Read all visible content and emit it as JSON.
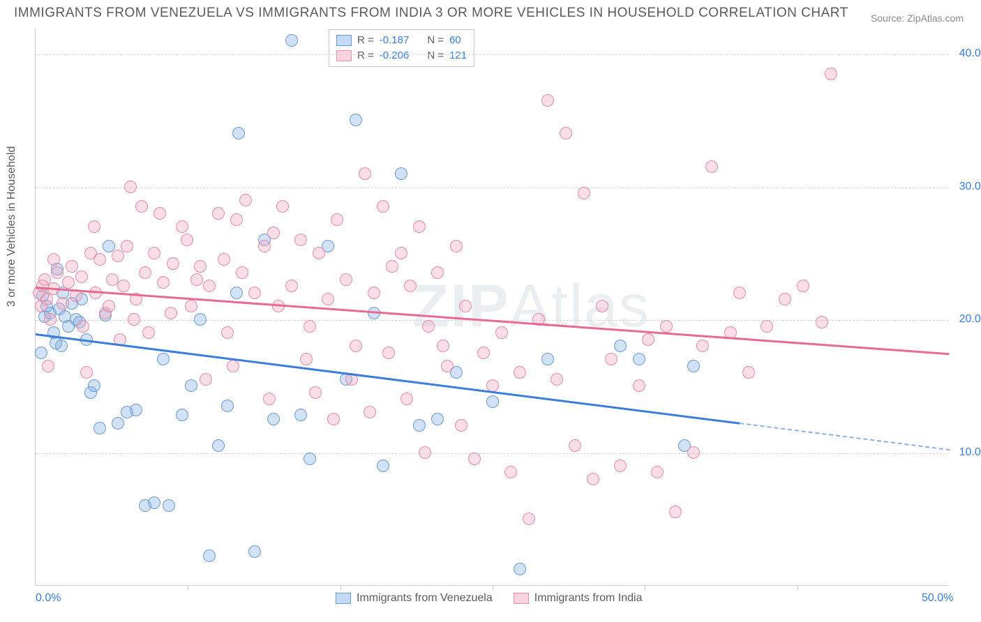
{
  "title": "IMMIGRANTS FROM VENEZUELA VS IMMIGRANTS FROM INDIA 3 OR MORE VEHICLES IN HOUSEHOLD CORRELATION CHART",
  "source": "Source: ZipAtlas.com",
  "y_axis_label": "3 or more Vehicles in Household",
  "watermark_bold": "ZIP",
  "watermark_rest": "Atlas",
  "chart": {
    "type": "scatter",
    "xlim": [
      0,
      50
    ],
    "ylim": [
      0,
      42
    ],
    "x_ticks": [
      0,
      50
    ],
    "x_tick_labels": [
      "0.0%",
      "50.0%"
    ],
    "x_minor_ticks": [
      8.33,
      16.67,
      25,
      33.33,
      41.67
    ],
    "y_gridlines": [
      10,
      20,
      30,
      40
    ],
    "y_tick_labels": [
      "10.0%",
      "20.0%",
      "30.0%",
      "40.0%"
    ],
    "background_color": "#ffffff",
    "grid_color": "#d8d8d8",
    "axis_color": "#cccccc",
    "point_radius": 9,
    "series": [
      {
        "name": "Immigrants from Venezuela",
        "color_fill": "rgba(122,171,230,0.35)",
        "color_stroke": "#6a9ad0",
        "trend_color": "#3b7dd8",
        "R": "-0.187",
        "N": "60",
        "trend": {
          "x1": 0,
          "y1": 19.0,
          "x2": 38.5,
          "y2": 12.3,
          "dash_to_x": 50,
          "dash_to_y": 10.3
        },
        "points": [
          [
            0.4,
            21.8
          ],
          [
            0.5,
            20.2
          ],
          [
            0.6,
            21.0
          ],
          [
            0.8,
            20.5
          ],
          [
            1.0,
            19.0
          ],
          [
            1.2,
            23.8
          ],
          [
            1.3,
            20.8
          ],
          [
            1.4,
            18.0
          ],
          [
            1.5,
            22.0
          ],
          [
            1.6,
            20.2
          ],
          [
            1.8,
            19.5
          ],
          [
            2.0,
            21.2
          ],
          [
            2.2,
            20.0
          ],
          [
            2.5,
            21.5
          ],
          [
            2.8,
            18.5
          ],
          [
            3.0,
            14.5
          ],
          [
            3.2,
            15.0
          ],
          [
            3.5,
            11.8
          ],
          [
            3.8,
            20.3
          ],
          [
            4.0,
            25.5
          ],
          [
            4.5,
            12.2
          ],
          [
            5.0,
            13.0
          ],
          [
            5.5,
            13.2
          ],
          [
            6.0,
            6.0
          ],
          [
            6.5,
            6.2
          ],
          [
            7.0,
            17.0
          ],
          [
            7.3,
            6.0
          ],
          [
            8.0,
            12.8
          ],
          [
            8.5,
            15.0
          ],
          [
            9.0,
            20.0
          ],
          [
            9.5,
            2.2
          ],
          [
            10.0,
            10.5
          ],
          [
            10.5,
            13.5
          ],
          [
            11.0,
            22.0
          ],
          [
            11.1,
            34.0
          ],
          [
            12.0,
            2.5
          ],
          [
            12.5,
            26.0
          ],
          [
            13.0,
            12.5
          ],
          [
            14.0,
            41.0
          ],
          [
            14.5,
            12.8
          ],
          [
            15.0,
            9.5
          ],
          [
            16.0,
            25.5
          ],
          [
            17.0,
            15.5
          ],
          [
            17.5,
            35.0
          ],
          [
            18.5,
            20.5
          ],
          [
            19.0,
            9.0
          ],
          [
            20.0,
            31.0
          ],
          [
            21.0,
            12.0
          ],
          [
            22.0,
            12.5
          ],
          [
            23.0,
            16.0
          ],
          [
            25.0,
            13.8
          ],
          [
            26.5,
            1.2
          ],
          [
            28.0,
            17.0
          ],
          [
            32.0,
            18.0
          ],
          [
            33.0,
            17.0
          ],
          [
            35.5,
            10.5
          ],
          [
            36.0,
            16.5
          ],
          [
            0.3,
            17.5
          ],
          [
            1.1,
            18.2
          ],
          [
            2.4,
            19.8
          ]
        ]
      },
      {
        "name": "Immigrants from India",
        "color_fill": "rgba(242,160,185,0.35)",
        "color_stroke": "#e28ca8",
        "trend_color": "#e86a93",
        "R": "-0.206",
        "N": "121",
        "trend": {
          "x1": 0,
          "y1": 22.5,
          "x2": 50,
          "y2": 17.5
        },
        "points": [
          [
            0.2,
            22.0
          ],
          [
            0.3,
            21.0
          ],
          [
            0.4,
            22.5
          ],
          [
            0.5,
            23.0
          ],
          [
            0.6,
            21.5
          ],
          [
            0.7,
            16.5
          ],
          [
            0.8,
            20.0
          ],
          [
            1.0,
            22.3
          ],
          [
            1.2,
            23.5
          ],
          [
            1.5,
            21.2
          ],
          [
            1.8,
            22.8
          ],
          [
            2.0,
            24.0
          ],
          [
            2.2,
            21.8
          ],
          [
            2.5,
            23.2
          ],
          [
            2.8,
            16.0
          ],
          [
            3.0,
            25.0
          ],
          [
            3.3,
            22.0
          ],
          [
            3.5,
            24.5
          ],
          [
            3.8,
            20.5
          ],
          [
            4.0,
            21.0
          ],
          [
            4.2,
            23.0
          ],
          [
            4.5,
            24.8
          ],
          [
            4.8,
            22.5
          ],
          [
            5.0,
            25.5
          ],
          [
            5.2,
            30.0
          ],
          [
            5.5,
            21.5
          ],
          [
            5.8,
            28.5
          ],
          [
            6.0,
            23.5
          ],
          [
            6.5,
            25.0
          ],
          [
            7.0,
            22.8
          ],
          [
            7.5,
            24.2
          ],
          [
            8.0,
            27.0
          ],
          [
            8.3,
            26.0
          ],
          [
            8.5,
            21.0
          ],
          [
            9.0,
            24.0
          ],
          [
            9.5,
            22.5
          ],
          [
            10.0,
            28.0
          ],
          [
            10.3,
            24.5
          ],
          [
            10.5,
            19.0
          ],
          [
            11.0,
            27.5
          ],
          [
            11.5,
            29.0
          ],
          [
            12.0,
            22.0
          ],
          [
            12.5,
            25.5
          ],
          [
            13.0,
            26.5
          ],
          [
            13.5,
            28.5
          ],
          [
            14.0,
            22.5
          ],
          [
            14.5,
            26.0
          ],
          [
            15.0,
            19.5
          ],
          [
            15.5,
            25.0
          ],
          [
            16.0,
            21.5
          ],
          [
            16.5,
            27.5
          ],
          [
            17.0,
            23.0
          ],
          [
            17.5,
            18.0
          ],
          [
            18.0,
            31.0
          ],
          [
            18.5,
            22.0
          ],
          [
            19.0,
            28.5
          ],
          [
            19.5,
            24.0
          ],
          [
            20.0,
            25.0
          ],
          [
            20.5,
            22.5
          ],
          [
            21.0,
            27.0
          ],
          [
            21.5,
            19.5
          ],
          [
            22.0,
            23.5
          ],
          [
            22.5,
            16.5
          ],
          [
            23.0,
            25.5
          ],
          [
            23.5,
            21.0
          ],
          [
            24.0,
            9.5
          ],
          [
            24.5,
            17.5
          ],
          [
            25.0,
            15.0
          ],
          [
            25.5,
            19.0
          ],
          [
            26.0,
            8.5
          ],
          [
            26.5,
            16.0
          ],
          [
            27.0,
            5.0
          ],
          [
            27.5,
            20.0
          ],
          [
            28.0,
            36.5
          ],
          [
            28.5,
            15.5
          ],
          [
            29.0,
            34.0
          ],
          [
            29.5,
            10.5
          ],
          [
            30.0,
            29.5
          ],
          [
            30.5,
            8.0
          ],
          [
            31.0,
            21.0
          ],
          [
            31.5,
            17.0
          ],
          [
            32.0,
            9.0
          ],
          [
            33.0,
            15.0
          ],
          [
            33.5,
            18.5
          ],
          [
            34.0,
            8.5
          ],
          [
            34.5,
            19.5
          ],
          [
            35.0,
            5.5
          ],
          [
            36.0,
            10.0
          ],
          [
            36.5,
            18.0
          ],
          [
            37.0,
            31.5
          ],
          [
            38.0,
            19.0
          ],
          [
            38.5,
            22.0
          ],
          [
            39.0,
            16.0
          ],
          [
            40.0,
            19.5
          ],
          [
            41.0,
            21.5
          ],
          [
            42.0,
            22.5
          ],
          [
            43.0,
            19.8
          ],
          [
            43.5,
            38.5
          ],
          [
            1.0,
            24.5
          ],
          [
            2.6,
            19.5
          ],
          [
            3.2,
            27.0
          ],
          [
            4.6,
            18.5
          ],
          [
            5.4,
            20.0
          ],
          [
            6.2,
            19.0
          ],
          [
            6.8,
            28.0
          ],
          [
            7.4,
            20.5
          ],
          [
            8.8,
            23.0
          ],
          [
            9.3,
            15.5
          ],
          [
            10.8,
            16.5
          ],
          [
            11.3,
            23.5
          ],
          [
            12.8,
            14.0
          ],
          [
            13.3,
            21.0
          ],
          [
            14.8,
            17.0
          ],
          [
            15.3,
            14.5
          ],
          [
            16.3,
            12.5
          ],
          [
            17.3,
            15.5
          ],
          [
            18.3,
            13.0
          ],
          [
            19.3,
            17.5
          ],
          [
            20.3,
            14.0
          ],
          [
            21.3,
            10.0
          ],
          [
            22.3,
            18.0
          ],
          [
            23.3,
            12.0
          ]
        ]
      }
    ]
  },
  "legend_top": {
    "R_label": "R =",
    "N_label": "N ="
  },
  "legend_bottom": {
    "series1": "Immigrants from Venezuela",
    "series2": "Immigrants from India"
  }
}
